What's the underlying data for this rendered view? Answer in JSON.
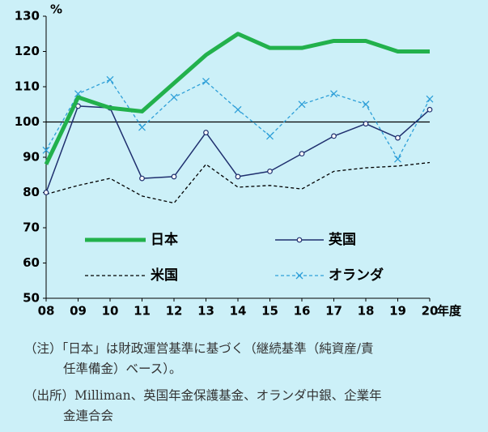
{
  "chart_data": {
    "type": "line",
    "y_unit": "%",
    "x_unit": "年度",
    "categories": [
      "08",
      "09",
      "10",
      "11",
      "12",
      "13",
      "14",
      "15",
      "16",
      "17",
      "18",
      "19",
      "20"
    ],
    "series": [
      {
        "name": "日本",
        "color": "#22b14c",
        "style": "solid",
        "width": 5,
        "marker": "none",
        "values": [
          88,
          107,
          104,
          103,
          111,
          119,
          125,
          121,
          121,
          123,
          123,
          120,
          120
        ]
      },
      {
        "name": "英国",
        "color": "#1f2f6e",
        "style": "solid",
        "width": 1.5,
        "marker": "circle",
        "values": [
          80,
          104.5,
          104,
          84,
          84.5,
          97,
          84.5,
          86,
          91,
          96,
          99.5,
          95.5,
          103.5
        ]
      },
      {
        "name": "米国",
        "color": "#000000",
        "style": "dashed",
        "width": 1.3,
        "marker": "none",
        "values": [
          79.5,
          82,
          84,
          79,
          77,
          88,
          81.5,
          82,
          81,
          86,
          87,
          87.5,
          88.5
        ]
      },
      {
        "name": "オランダ",
        "color": "#2e9fd8",
        "style": "dashed",
        "width": 1.3,
        "marker": "x",
        "values": [
          92,
          108,
          112,
          98.5,
          107,
          111.5,
          103.5,
          96,
          105,
          108,
          105,
          89.5,
          106.5
        ]
      }
    ],
    "ylim": [
      50,
      130
    ],
    "yticks": [
      50,
      60,
      70,
      80,
      90,
      100,
      110,
      120,
      130
    ],
    "reference_line": 100,
    "notes": [
      [
        "（注）「日本」は財政運営基準に基づく（継続基準（純資産/責",
        "任準備金）ベース）。"
      ],
      [
        "（出所）Milliman、英国年金保護基金、オランダ中銀、企業年",
        "金連合会"
      ]
    ]
  }
}
